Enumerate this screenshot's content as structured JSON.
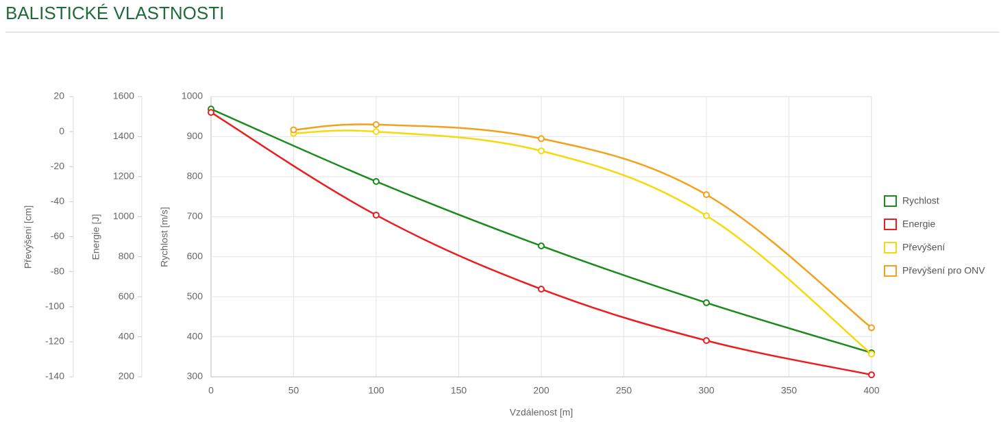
{
  "page_title": "BALISTICKÉ VLASTNOSTI",
  "chart_data": {
    "type": "line",
    "x_label": "Vzdálenost [m]",
    "y_label": "Rychlost [m/s]",
    "y2_label": "Energie [J]",
    "y3_label": "Převýšení [cm]",
    "xlim": [
      0,
      400
    ],
    "xticks": [
      0,
      50,
      100,
      150,
      200,
      250,
      300,
      350,
      400
    ],
    "ylim": [
      300,
      1000
    ],
    "yticks": [
      300,
      400,
      500,
      600,
      700,
      800,
      900,
      1000
    ],
    "y2lim": [
      200,
      1600
    ],
    "y2ticks": [
      200,
      400,
      600,
      800,
      1000,
      1200,
      1400,
      1600
    ],
    "y3lim": [
      -140,
      20
    ],
    "y3ticks": [
      -140,
      -120,
      -100,
      -80,
      -60,
      -40,
      -20,
      0,
      20
    ],
    "grid": true,
    "legend": "right",
    "series": [
      {
        "name": "Rychlost",
        "color": "#1a8a1a",
        "axis": "y",
        "x": [
          0,
          100,
          200,
          300,
          400
        ],
        "values": [
          969,
          788,
          627,
          485,
          360
        ]
      },
      {
        "name": "Energie",
        "color": "#ee1c1c",
        "axis": "y2",
        "x": [
          0,
          100,
          200,
          300,
          400
        ],
        "values": [
          1521,
          1008,
          638,
          381,
          210
        ]
      },
      {
        "name": "Převýšení",
        "color": "#f5d90a",
        "axis": "y3",
        "x": [
          50,
          100,
          200,
          300,
          400
        ],
        "values": [
          -1,
          0,
          -11,
          -48,
          -127
        ]
      },
      {
        "name": "Převýšení pro ONV",
        "color": "#f5a01a",
        "axis": "y3",
        "x": [
          50,
          100,
          200,
          300,
          400
        ],
        "values": [
          1,
          4,
          -4,
          -36,
          -112
        ]
      }
    ]
  }
}
